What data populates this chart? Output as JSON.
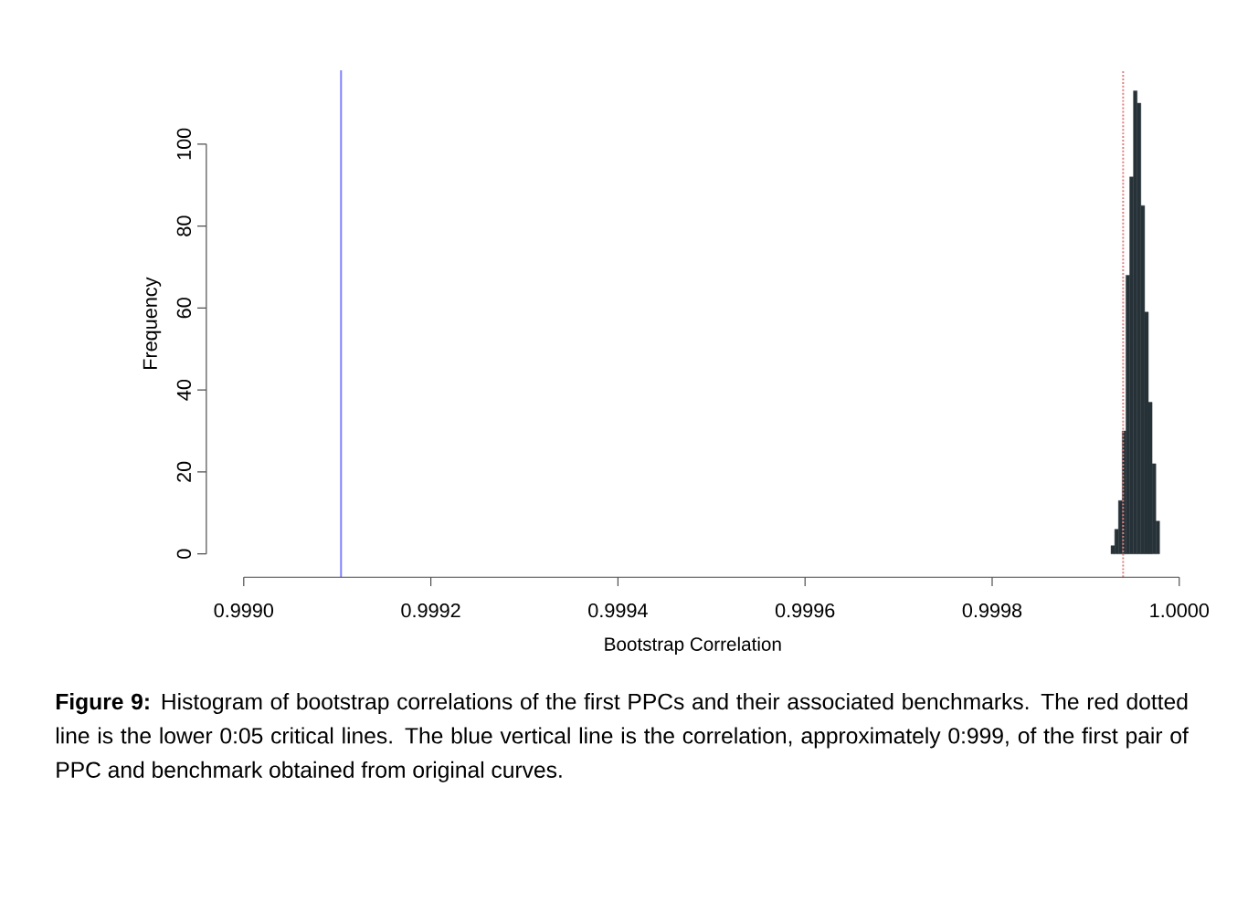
{
  "chart_data": {
    "type": "histogram",
    "xlabel": "Bootstrap Correlation",
    "ylabel": "Frequency",
    "bins": [
      0.999927,
      0.999931,
      0.999935,
      0.999939,
      0.999943,
      0.999947,
      0.999951,
      0.999955,
      0.999959,
      0.999963,
      0.999967,
      0.999971,
      0.999975,
      0.999979
    ],
    "values": [
      2,
      6,
      13,
      30,
      68,
      92,
      113,
      110,
      85,
      59,
      37,
      22,
      8
    ],
    "color": "#263238",
    "xlim": [
      0.99896,
      1.0
    ],
    "ylim": [
      -5.7,
      118
    ],
    "xticks": [
      {
        "value": 0.999,
        "label": "0.9990"
      },
      {
        "value": 0.9992,
        "label": "0.9992"
      },
      {
        "value": 0.9994,
        "label": "0.9994"
      },
      {
        "value": 0.9996,
        "label": "0.9996"
      },
      {
        "value": 0.9998,
        "label": "0.9998"
      },
      {
        "value": 1.0,
        "label": "1.0000"
      }
    ],
    "yticks": [
      0,
      20,
      40,
      60,
      80,
      100
    ],
    "ref_lines": [
      {
        "axis": "x",
        "value": 0.999104,
        "color": "#7f7fff",
        "line_style": "solid"
      },
      {
        "axis": "x",
        "value": 0.99994,
        "color": "#e08080",
        "line_style": "dotted"
      }
    ],
    "annotations": [
      "**Figure 9:** Histogram of bootstrap correlations of the first PPCs and their associated benchmarks. The red dotted line is the lower 0:05 critical lines. The blue vertical line is the correlation, approximately 0:999, of the first pair of PPC and benchmark obtained from original curves."
    ]
  }
}
